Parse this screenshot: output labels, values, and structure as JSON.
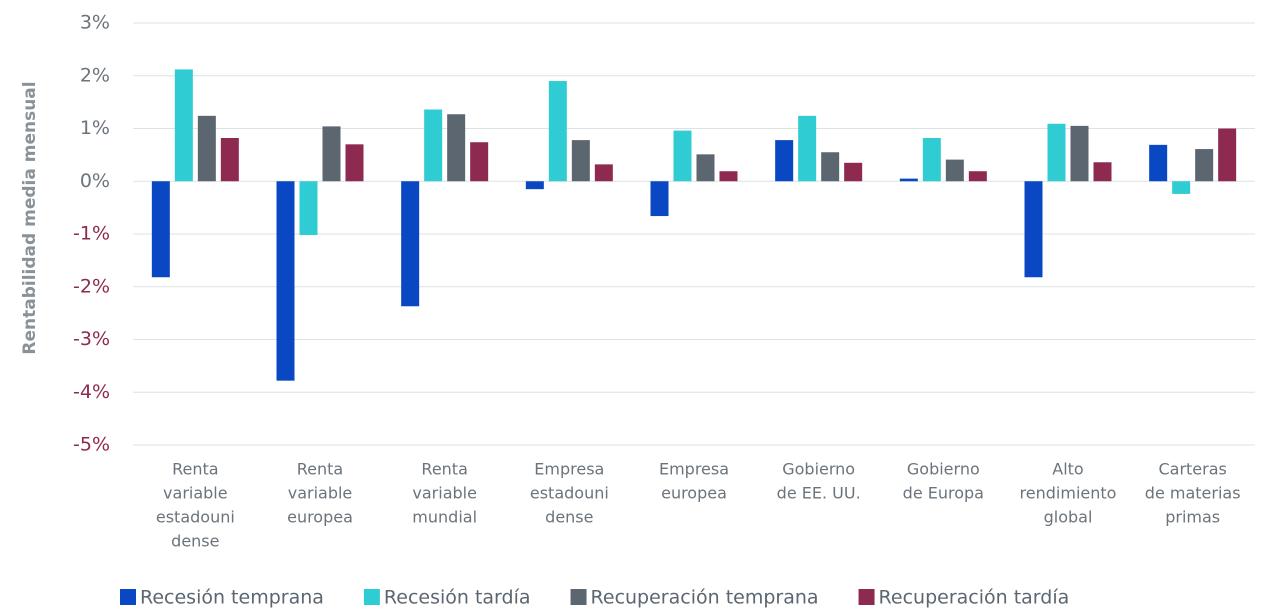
{
  "chart_data": {
    "type": "bar",
    "y_label": "Rentabilidad media mensual",
    "categories": [
      [
        "Renta",
        "variable",
        "estadouni",
        "dense"
      ],
      [
        "Renta",
        "variable",
        "europea"
      ],
      [
        "Renta",
        "variable",
        "mundial"
      ],
      [
        "Empresa",
        "estadouni",
        "dense"
      ],
      [
        "Empresa",
        "europea"
      ],
      [
        "Gobierno",
        "de EE. UU."
      ],
      [
        "Gobierno",
        "de Europa"
      ],
      [
        "Alto",
        "rendimiento",
        "global"
      ],
      [
        "Carteras",
        "de materias",
        "primas"
      ]
    ],
    "series": [
      {
        "name": "Recesión temprana",
        "color": "#0a47c2",
        "values": [
          -1.82,
          -3.78,
          -2.37,
          -0.15,
          -0.66,
          0.78,
          0.05,
          -1.82,
          0.69
        ]
      },
      {
        "name": "Recesión tardía",
        "color": "#2fcdd3",
        "values": [
          2.12,
          -1.02,
          1.36,
          1.9,
          0.96,
          1.24,
          0.82,
          1.09,
          -0.24
        ]
      },
      {
        "name": "Recuperación temprana",
        "color": "#5b6670",
        "values": [
          1.24,
          1.04,
          1.27,
          0.78,
          0.51,
          0.55,
          0.41,
          1.05,
          0.61
        ]
      },
      {
        "name": "Recuperación tardía",
        "color": "#8e2a50",
        "values": [
          0.82,
          0.7,
          0.74,
          0.32,
          0.19,
          0.35,
          0.19,
          0.36,
          1.0
        ]
      }
    ],
    "ylim": [
      -5,
      3
    ],
    "yticks": [
      {
        "value": -5,
        "label": "-5%"
      },
      {
        "value": -4,
        "label": "-4%"
      },
      {
        "value": -3,
        "label": "-3%"
      },
      {
        "value": -2,
        "label": "-2%"
      },
      {
        "value": -1,
        "label": "-1%"
      },
      {
        "value": 0,
        "label": "0%"
      },
      {
        "value": 1,
        "label": "1%"
      },
      {
        "value": 2,
        "label": "2%"
      },
      {
        "value": 3,
        "label": "3%"
      }
    ],
    "grid": true,
    "legend": "bottom"
  }
}
